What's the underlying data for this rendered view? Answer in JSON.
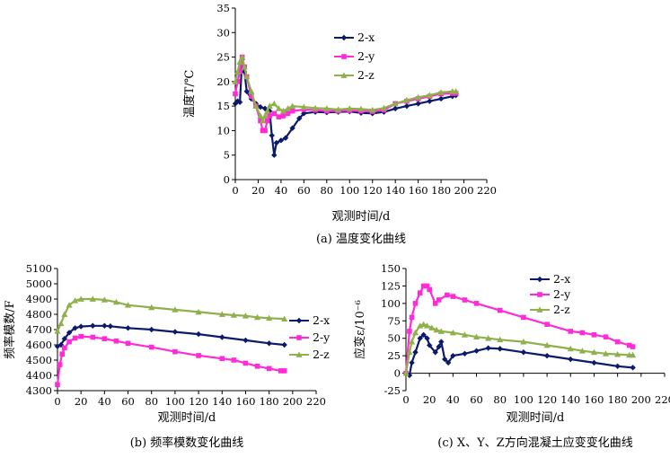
{
  "chart_data": [
    {
      "id": "a",
      "type": "line",
      "caption": "(a) 温度变化曲线",
      "xlabel": "观测时间/d",
      "ylabel": "温度T/℃",
      "xlim": [
        0,
        220
      ],
      "ylim": [
        0,
        35
      ],
      "xticks": [
        0,
        20,
        40,
        60,
        80,
        100,
        120,
        140,
        160,
        180,
        200,
        220
      ],
      "yticks": [
        0,
        5,
        10,
        15,
        20,
        25,
        30,
        35
      ],
      "legend_position": "upper-center",
      "series": [
        {
          "name": "2-x",
          "color": "#0b1a6b",
          "marker": "diamond",
          "x": [
            0,
            2,
            4,
            6,
            8,
            10,
            14,
            18,
            22,
            26,
            30,
            32,
            34,
            36,
            40,
            44,
            50,
            56,
            60,
            70,
            80,
            90,
            100,
            110,
            120,
            130,
            140,
            150,
            160,
            170,
            180,
            190,
            193
          ],
          "y": [
            15.5,
            16,
            15.8,
            24.5,
            22,
            18,
            16.5,
            15.5,
            14.8,
            14.5,
            14,
            9,
            5,
            7.5,
            8,
            8.5,
            10.5,
            12.5,
            13.5,
            13.8,
            13.7,
            13.8,
            13.9,
            13.6,
            13.5,
            13.8,
            14.5,
            15,
            15.5,
            16,
            16.5,
            17,
            17.2
          ]
        },
        {
          "name": "2-y",
          "color": "#ff2bd6",
          "marker": "square",
          "x": [
            0,
            2,
            4,
            6,
            8,
            10,
            14,
            18,
            22,
            24,
            26,
            28,
            30,
            34,
            38,
            42,
            46,
            50,
            60,
            70,
            80,
            90,
            100,
            110,
            120,
            130,
            140,
            150,
            160,
            170,
            180,
            190,
            193
          ],
          "y": [
            17.5,
            20,
            22,
            25,
            23,
            21,
            17,
            15,
            12,
            10,
            10,
            12,
            13,
            13.5,
            12.8,
            13,
            13.5,
            14,
            14.3,
            14.2,
            14,
            14,
            14.1,
            14,
            13.9,
            14.2,
            15.5,
            16,
            16.5,
            17,
            17.5,
            17.6,
            17.6
          ]
        },
        {
          "name": "2-z",
          "color": "#8fb04a",
          "marker": "triangle",
          "x": [
            0,
            2,
            4,
            6,
            8,
            10,
            14,
            18,
            22,
            24,
            26,
            28,
            30,
            34,
            38,
            42,
            46,
            50,
            60,
            70,
            80,
            90,
            100,
            110,
            120,
            130,
            140,
            150,
            160,
            170,
            180,
            190,
            193
          ],
          "y": [
            20,
            22,
            24,
            25,
            23,
            21,
            18,
            15,
            13,
            12,
            13,
            14,
            15,
            15.5,
            14.5,
            14,
            14.5,
            15,
            14.8,
            14.6,
            14.5,
            14.3,
            14.5,
            14.4,
            14.2,
            14.6,
            15.5,
            16.2,
            16.8,
            17.2,
            17.8,
            18,
            18
          ]
        }
      ]
    },
    {
      "id": "b",
      "type": "line",
      "caption": "(b) 频率模数变化曲线",
      "xlabel": "观测时间/d",
      "ylabel": "频率模数/F",
      "xlim": [
        0,
        220
      ],
      "ylim": [
        4300,
        5100
      ],
      "xticks": [
        0,
        20,
        40,
        60,
        80,
        100,
        120,
        140,
        160,
        180,
        200,
        220
      ],
      "yticks": [
        4300,
        4400,
        4500,
        4600,
        4700,
        4800,
        4900,
        5000,
        5100
      ],
      "legend_position": "right",
      "series": [
        {
          "name": "2-x",
          "color": "#0b1a6b",
          "marker": "diamond",
          "x": [
            0,
            3,
            6,
            10,
            15,
            20,
            30,
            40,
            45,
            60,
            80,
            100,
            120,
            140,
            160,
            180,
            193
          ],
          "y": [
            4590,
            4600,
            4640,
            4680,
            4710,
            4720,
            4725,
            4725,
            4722,
            4710,
            4700,
            4685,
            4670,
            4650,
            4630,
            4610,
            4600
          ]
        },
        {
          "name": "2-y",
          "color": "#ff2bd6",
          "marker": "square",
          "x": [
            0,
            2,
            4,
            6,
            10,
            15,
            20,
            30,
            40,
            50,
            60,
            80,
            100,
            120,
            140,
            150,
            160,
            170,
            180,
            190,
            193
          ],
          "y": [
            4340,
            4470,
            4540,
            4580,
            4620,
            4645,
            4655,
            4650,
            4640,
            4625,
            4610,
            4585,
            4555,
            4530,
            4510,
            4500,
            4480,
            4460,
            4445,
            4430,
            4430
          ]
        },
        {
          "name": "2-z",
          "color": "#8fb04a",
          "marker": "triangle",
          "x": [
            0,
            3,
            6,
            10,
            15,
            20,
            30,
            40,
            50,
            60,
            80,
            100,
            120,
            140,
            150,
            160,
            170,
            180,
            193
          ],
          "y": [
            4690,
            4740,
            4800,
            4860,
            4890,
            4900,
            4900,
            4895,
            4880,
            4860,
            4845,
            4830,
            4815,
            4800,
            4795,
            4790,
            4780,
            4775,
            4770
          ]
        }
      ]
    },
    {
      "id": "c",
      "type": "line",
      "caption": "(c) X、Y、Z方向混凝土应变变化曲线",
      "xlabel": "观测时间/d",
      "ylabel": "应变ε/10⁻⁶",
      "xlim": [
        0,
        220
      ],
      "ylim": [
        -25,
        150
      ],
      "xticks": [
        0,
        20,
        40,
        60,
        80,
        100,
        120,
        140,
        160,
        180,
        200,
        220
      ],
      "yticks": [
        -25,
        0,
        25,
        50,
        75,
        100,
        125,
        150
      ],
      "legend_position": "upper-right",
      "series": [
        {
          "name": "2-x",
          "color": "#0b1a6b",
          "marker": "diamond",
          "x": [
            0,
            3,
            5,
            8,
            12,
            15,
            18,
            20,
            25,
            28,
            30,
            33,
            36,
            40,
            50,
            60,
            70,
            80,
            100,
            120,
            140,
            160,
            180,
            193
          ],
          "y": [
            0,
            -3,
            15,
            30,
            50,
            55,
            50,
            40,
            30,
            38,
            45,
            20,
            15,
            25,
            28,
            32,
            36,
            35,
            30,
            25,
            20,
            15,
            10,
            8
          ]
        },
        {
          "name": "2-y",
          "color": "#ff2bd6",
          "marker": "square",
          "x": [
            0,
            3,
            5,
            8,
            12,
            15,
            18,
            20,
            25,
            28,
            35,
            40,
            50,
            60,
            80,
            100,
            120,
            140,
            150,
            160,
            170,
            180,
            190,
            193
          ],
          "y": [
            0,
            60,
            80,
            100,
            115,
            125,
            125,
            120,
            100,
            105,
            112,
            110,
            105,
            100,
            90,
            80,
            70,
            60,
            58,
            55,
            52,
            45,
            40,
            38
          ]
        },
        {
          "name": "2-z",
          "color": "#8fb04a",
          "marker": "triangle",
          "x": [
            0,
            3,
            5,
            8,
            12,
            15,
            18,
            22,
            26,
            30,
            40,
            50,
            60,
            70,
            80,
            100,
            120,
            140,
            150,
            160,
            170,
            180,
            190,
            193
          ],
          "y": [
            0,
            30,
            45,
            58,
            68,
            70,
            68,
            65,
            62,
            60,
            58,
            55,
            52,
            50,
            48,
            45,
            40,
            35,
            32,
            30,
            28,
            27,
            26,
            26
          ]
        }
      ]
    }
  ]
}
